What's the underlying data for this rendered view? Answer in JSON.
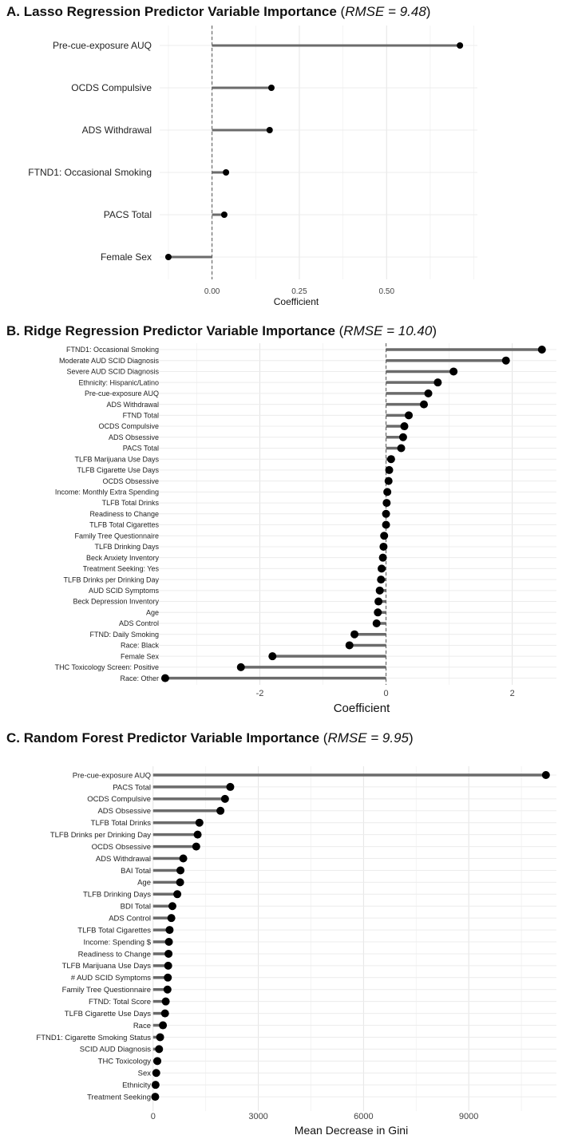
{
  "chart_data": [
    {
      "panel": "A",
      "type": "lollipop",
      "title_main": "A. Lasso Regression Predictor Variable Importance",
      "title_rmse": "RMSE = 9.48",
      "xlabel": "Coefficient",
      "xlim": [
        -0.15,
        0.76
      ],
      "x_ticks": [
        0,
        0.25,
        0.5
      ],
      "x_tick_labels": [
        "0.00",
        "0.25",
        "0.50"
      ],
      "reference_line": 0,
      "categories": [
        "Pre-cue-exposure AUQ",
        "OCDS Compulsive",
        "ADS Withdrawal",
        "FTND1: Occasional Smoking",
        "PACS Total",
        "Female Sex"
      ],
      "values": [
        0.71,
        0.17,
        0.165,
        0.04,
        0.035,
        -0.125
      ]
    },
    {
      "panel": "B",
      "type": "lollipop",
      "title_main": "B. Ridge Regression Predictor Variable Importance",
      "title_rmse": "RMSE = 10.40",
      "xlabel": "Coefficient",
      "xlim": [
        -3.6,
        2.7
      ],
      "x_ticks": [
        -2,
        0,
        2
      ],
      "x_tick_labels": [
        "-2",
        "0",
        "2"
      ],
      "reference_line": 0,
      "categories": [
        "FTND1: Occasional Smoking",
        "Moderate AUD SCID Diagnosis",
        "Severe AUD SCID Diagnosis",
        "Ethnicity: Hispanic/Latino",
        "Pre-cue-exposure AUQ",
        "ADS Withdrawal",
        "FTND Total",
        "OCDS Compulsive",
        "ADS Obsessive",
        "PACS Total",
        "TLFB Marijuana Use Days",
        "TLFB Cigarette Use Days",
        "OCDS Obsessive",
        "Income: Monthly Extra Spending",
        "TLFB Total Drinks",
        "Readiness to Change",
        "TLFB Total Cigarettes",
        "Family Tree Questionnaire",
        "TLFB Drinking Days",
        "Beck Anxiety Inventory",
        "Treatment Seeking: Yes",
        "TLFB Drinks per Drinking Day",
        "AUD SCID Symptoms",
        "Beck Depression Inventory",
        "Age",
        "ADS Control",
        "FTND: Daily Smoking",
        "Race: Black",
        "Female Sex",
        "THC Toxicology Screen: Positive",
        "Race: Other"
      ],
      "values": [
        2.47,
        1.9,
        1.07,
        0.82,
        0.67,
        0.6,
        0.36,
        0.29,
        0.27,
        0.24,
        0.08,
        0.05,
        0.04,
        0.02,
        0.01,
        0.0,
        0.0,
        -0.03,
        -0.04,
        -0.05,
        -0.07,
        -0.08,
        -0.1,
        -0.12,
        -0.13,
        -0.15,
        -0.5,
        -0.58,
        -1.8,
        -2.3,
        -3.5
      ]
    },
    {
      "panel": "C",
      "type": "lollipop",
      "title_main": "C. Random Forest Predictor Variable Importance",
      "title_rmse": "RMSE = 9.95",
      "xlabel": "Mean Decrease in Gini",
      "xlim": [
        -200,
        11500
      ],
      "x_ticks": [
        0,
        3000,
        6000,
        9000
      ],
      "x_tick_labels": [
        "0",
        "3000",
        "6000",
        "9000"
      ],
      "reference_line": null,
      "categories": [
        "Pre-cue-exposure AUQ",
        "PACS Total",
        "OCDS Compulsive",
        "ADS Obsessive",
        "TLFB Total Drinks",
        "TLFB Drinks per Drinking Day",
        "OCDS Obsessive",
        "ADS Withdrawal",
        "BAI Total",
        "Age",
        "TLFB Drinking Days",
        "BDI Total",
        "ADS Control",
        "TLFB Total Cigarettes",
        "Income: Spending $",
        "Readiness to Change",
        "TLFB Marijuana Use Days",
        "# AUD SCID Symptoms",
        "Family Tree Questionnaire",
        "FTND: Total Score",
        "TLFB Cigarette Use Days",
        "Race",
        "FTND1: Cigarette Smoking Status",
        "SCID AUD Diagnosis",
        "THC Toxicology",
        "Sex",
        "Ethnicity",
        "Treatment Seeking"
      ],
      "values": [
        11200,
        2200,
        2050,
        1920,
        1320,
        1270,
        1230,
        860,
        780,
        770,
        690,
        550,
        520,
        470,
        450,
        440,
        430,
        420,
        410,
        360,
        340,
        280,
        200,
        170,
        120,
        90,
        70,
        60
      ]
    }
  ]
}
